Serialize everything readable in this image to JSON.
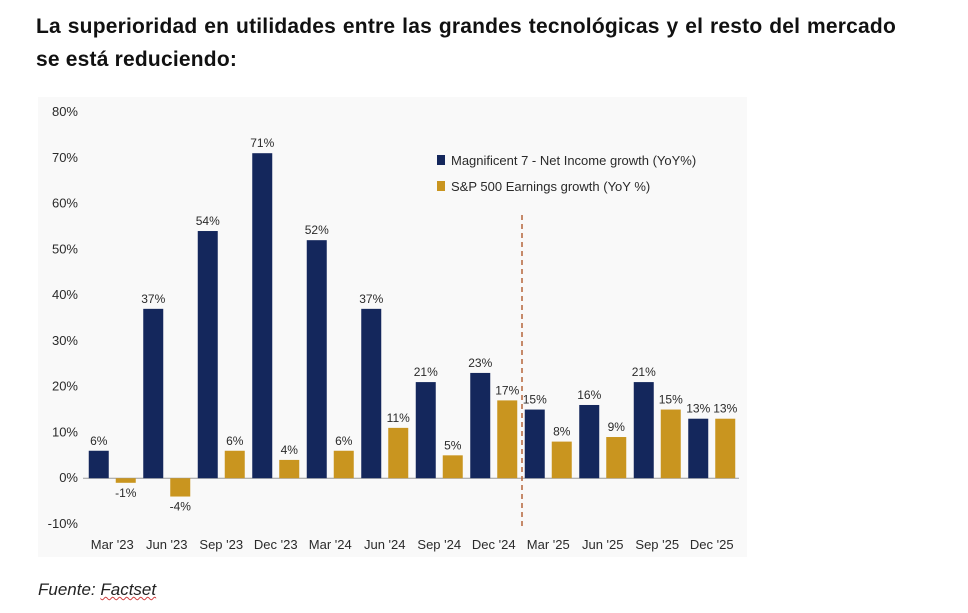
{
  "title": "La superioridad en utilidades entre las grandes tecnológicas y el resto del mercado se está reduciendo:",
  "source": {
    "prefix": "Fuente: ",
    "name": "Factset"
  },
  "colors": {
    "mag7": "#14275c",
    "sp500": "#c9951f",
    "divider": "#b5653a"
  },
  "chart_data": {
    "type": "bar",
    "title": "",
    "xlabel": "",
    "ylabel": "",
    "ylim": [
      -10,
      80
    ],
    "yticks": [
      "80%",
      "70%",
      "60%",
      "50%",
      "40%",
      "30%",
      "20%",
      "10%",
      "0%",
      "-10%"
    ],
    "ytick_values": [
      80,
      70,
      60,
      50,
      40,
      30,
      20,
      10,
      0,
      -10
    ],
    "grid": false,
    "legend_position": "top-right",
    "categories": [
      "Mar '23",
      "Jun '23",
      "Sep '23",
      "Dec '23",
      "Mar '24",
      "Jun '24",
      "Sep '24",
      "Dec '24",
      "Mar '25",
      "Jun '25",
      "Sep '25",
      "Dec '25"
    ],
    "series": [
      {
        "name": "Magnificent 7 - Net Income growth (YoY%)",
        "values": [
          6,
          37,
          54,
          71,
          52,
          37,
          21,
          23,
          15,
          16,
          21,
          13
        ],
        "labels": [
          "6%",
          "37%",
          "54%",
          "71%",
          "52%",
          "37%",
          "21%",
          "23%",
          "15%",
          "16%",
          "21%",
          "13%"
        ]
      },
      {
        "name": "S&P 500 Earnings growth (YoY %)",
        "values": [
          -1,
          -4,
          6,
          4,
          6,
          11,
          5,
          17,
          8,
          9,
          15,
          13
        ],
        "labels": [
          "-1%",
          "-4%",
          "6%",
          "4%",
          "6%",
          "11%",
          "5%",
          "17%",
          "8%",
          "9%",
          "15%",
          "13%"
        ]
      }
    ],
    "divider_after_category": "Dec '24",
    "divider_style": "dashed"
  }
}
